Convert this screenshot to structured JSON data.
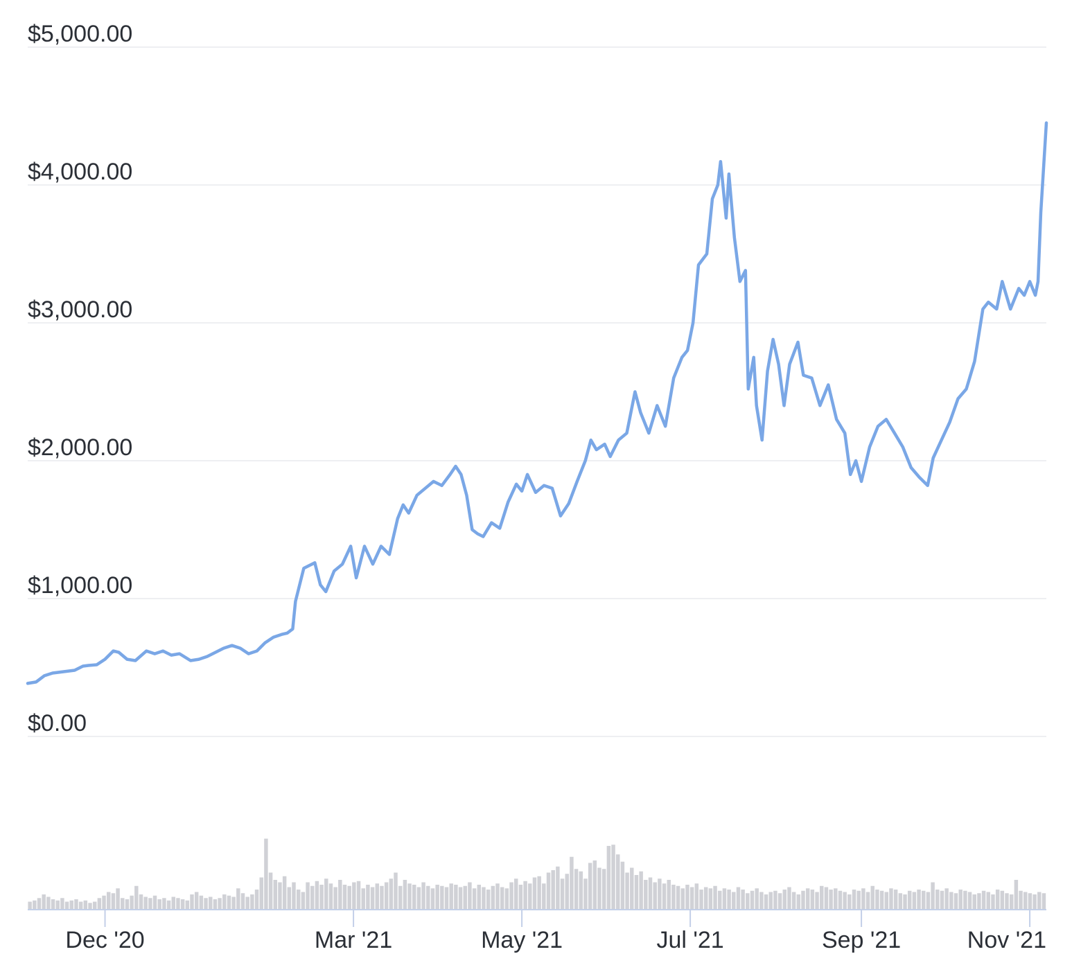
{
  "chart_data": {
    "type": "line",
    "series": [
      {
        "kind": "price_line",
        "color": "#7aa7e6"
      },
      {
        "kind": "volume_bars",
        "color": "#d0d1d6",
        "scale": "relative"
      }
    ],
    "y_ticks": [
      "$5,000.00",
      "$4,000.00",
      "$3,000.00",
      "$2,000.00",
      "$1,000.00",
      "$0.00"
    ],
    "y_tick_values": [
      5000,
      4000,
      3000,
      2000,
      1000,
      0
    ],
    "ylim": [
      0,
      5000
    ],
    "x_ticks": [
      "Dec '20",
      "Mar '21",
      "May '21",
      "Jul '21",
      "Sep '21",
      "Nov '21"
    ],
    "x_tick_dates": [
      "2020-12-01",
      "2021-03-01",
      "2021-05-01",
      "2021-07-01",
      "2021-09-01",
      "2021-11-01"
    ],
    "xlim": [
      "2020-11-03",
      "2021-11-07"
    ],
    "grid": true,
    "price_points": [
      [
        "2020-11-03",
        385
      ],
      [
        "2020-11-06",
        395
      ],
      [
        "2020-11-09",
        440
      ],
      [
        "2020-11-12",
        460
      ],
      [
        "2020-11-16",
        470
      ],
      [
        "2020-11-20",
        480
      ],
      [
        "2020-11-23",
        510
      ],
      [
        "2020-11-25",
        515
      ],
      [
        "2020-11-28",
        520
      ],
      [
        "2020-12-01",
        560
      ],
      [
        "2020-12-04",
        620
      ],
      [
        "2020-12-06",
        610
      ],
      [
        "2020-12-09",
        560
      ],
      [
        "2020-12-12",
        550
      ],
      [
        "2020-12-16",
        620
      ],
      [
        "2020-12-19",
        600
      ],
      [
        "2020-12-22",
        620
      ],
      [
        "2020-12-25",
        590
      ],
      [
        "2020-12-28",
        600
      ],
      [
        "2021-01-01",
        550
      ],
      [
        "2021-01-04",
        560
      ],
      [
        "2021-01-07",
        580
      ],
      [
        "2021-01-10",
        610
      ],
      [
        "2021-01-13",
        640
      ],
      [
        "2021-01-16",
        660
      ],
      [
        "2021-01-19",
        640
      ],
      [
        "2021-01-22",
        600
      ],
      [
        "2021-01-25",
        620
      ],
      [
        "2021-01-28",
        680
      ],
      [
        "2021-01-31",
        720
      ],
      [
        "2021-02-03",
        740
      ],
      [
        "2021-02-05",
        750
      ],
      [
        "2021-02-07",
        780
      ],
      [
        "2021-02-08",
        980
      ],
      [
        "2021-02-11",
        1220
      ],
      [
        "2021-02-13",
        1240
      ],
      [
        "2021-02-15",
        1260
      ],
      [
        "2021-02-17",
        1100
      ],
      [
        "2021-02-19",
        1050
      ],
      [
        "2021-02-22",
        1200
      ],
      [
        "2021-02-25",
        1250
      ],
      [
        "2021-02-28",
        1380
      ],
      [
        "2021-03-02",
        1150
      ],
      [
        "2021-03-05",
        1380
      ],
      [
        "2021-03-08",
        1250
      ],
      [
        "2021-03-11",
        1380
      ],
      [
        "2021-03-14",
        1320
      ],
      [
        "2021-03-17",
        1580
      ],
      [
        "2021-03-19",
        1680
      ],
      [
        "2021-03-21",
        1620
      ],
      [
        "2021-03-24",
        1750
      ],
      [
        "2021-03-27",
        1800
      ],
      [
        "2021-03-30",
        1850
      ],
      [
        "2021-04-02",
        1820
      ],
      [
        "2021-04-05",
        1900
      ],
      [
        "2021-04-07",
        1960
      ],
      [
        "2021-04-09",
        1900
      ],
      [
        "2021-04-11",
        1750
      ],
      [
        "2021-04-13",
        1500
      ],
      [
        "2021-04-15",
        1470
      ],
      [
        "2021-04-17",
        1450
      ],
      [
        "2021-04-20",
        1550
      ],
      [
        "2021-04-23",
        1510
      ],
      [
        "2021-04-26",
        1700
      ],
      [
        "2021-04-29",
        1830
      ],
      [
        "2021-05-01",
        1780
      ],
      [
        "2021-05-03",
        1900
      ],
      [
        "2021-05-06",
        1770
      ],
      [
        "2021-05-09",
        1820
      ],
      [
        "2021-05-12",
        1800
      ],
      [
        "2021-05-15",
        1600
      ],
      [
        "2021-05-18",
        1690
      ],
      [
        "2021-05-21",
        1850
      ],
      [
        "2021-05-24",
        2000
      ],
      [
        "2021-05-26",
        2150
      ],
      [
        "2021-05-28",
        2080
      ],
      [
        "2021-05-31",
        2120
      ],
      [
        "2021-06-02",
        2030
      ],
      [
        "2021-06-05",
        2150
      ],
      [
        "2021-06-08",
        2200
      ],
      [
        "2021-06-11",
        2500
      ],
      [
        "2021-06-13",
        2350
      ],
      [
        "2021-06-16",
        2200
      ],
      [
        "2021-06-19",
        2400
      ],
      [
        "2021-06-22",
        2250
      ],
      [
        "2021-06-25",
        2600
      ],
      [
        "2021-06-28",
        2750
      ],
      [
        "2021-06-30",
        2800
      ],
      [
        "2021-07-02",
        3000
      ],
      [
        "2021-07-04",
        3420
      ],
      [
        "2021-07-07",
        3500
      ],
      [
        "2021-07-09",
        3900
      ],
      [
        "2021-07-11",
        4000
      ],
      [
        "2021-07-12",
        4170
      ],
      [
        "2021-07-14",
        3760
      ],
      [
        "2021-07-15",
        4080
      ],
      [
        "2021-07-17",
        3620
      ],
      [
        "2021-07-19",
        3300
      ],
      [
        "2021-07-21",
        3380
      ],
      [
        "2021-07-22",
        2520
      ],
      [
        "2021-07-24",
        2750
      ],
      [
        "2021-07-25",
        2400
      ],
      [
        "2021-07-27",
        2150
      ],
      [
        "2021-07-29",
        2650
      ],
      [
        "2021-07-31",
        2880
      ],
      [
        "2021-08-02",
        2700
      ],
      [
        "2021-08-04",
        2400
      ],
      [
        "2021-08-06",
        2700
      ],
      [
        "2021-08-09",
        2860
      ],
      [
        "2021-08-11",
        2620
      ],
      [
        "2021-08-14",
        2600
      ],
      [
        "2021-08-17",
        2400
      ],
      [
        "2021-08-20",
        2550
      ],
      [
        "2021-08-23",
        2300
      ],
      [
        "2021-08-26",
        2200
      ],
      [
        "2021-08-28",
        1900
      ],
      [
        "2021-08-30",
        2000
      ],
      [
        "2021-09-01",
        1850
      ],
      [
        "2021-09-04",
        2100
      ],
      [
        "2021-09-07",
        2250
      ],
      [
        "2021-09-10",
        2300
      ],
      [
        "2021-09-13",
        2200
      ],
      [
        "2021-09-16",
        2100
      ],
      [
        "2021-09-19",
        1950
      ],
      [
        "2021-09-22",
        1880
      ],
      [
        "2021-09-25",
        1820
      ],
      [
        "2021-09-27",
        2020
      ],
      [
        "2021-09-30",
        2150
      ],
      [
        "2021-10-03",
        2280
      ],
      [
        "2021-10-06",
        2450
      ],
      [
        "2021-10-09",
        2520
      ],
      [
        "2021-10-12",
        2720
      ],
      [
        "2021-10-15",
        3100
      ],
      [
        "2021-10-17",
        3150
      ],
      [
        "2021-10-20",
        3100
      ],
      [
        "2021-10-22",
        3300
      ],
      [
        "2021-10-25",
        3100
      ],
      [
        "2021-10-28",
        3250
      ],
      [
        "2021-10-30",
        3200
      ],
      [
        "2021-11-01",
        3300
      ],
      [
        "2021-11-03",
        3200
      ],
      [
        "2021-11-04",
        3300
      ],
      [
        "2021-11-05",
        3800
      ],
      [
        "2021-11-07",
        4450
      ]
    ],
    "volume_bars_relative": [
      0.06,
      0.07,
      0.09,
      0.12,
      0.1,
      0.08,
      0.07,
      0.09,
      0.06,
      0.07,
      0.08,
      0.06,
      0.07,
      0.05,
      0.06,
      0.09,
      0.11,
      0.14,
      0.13,
      0.17,
      0.09,
      0.08,
      0.11,
      0.19,
      0.12,
      0.1,
      0.09,
      0.11,
      0.08,
      0.09,
      0.07,
      0.1,
      0.09,
      0.08,
      0.07,
      0.12,
      0.14,
      0.11,
      0.09,
      0.1,
      0.08,
      0.09,
      0.12,
      0.11,
      0.1,
      0.17,
      0.13,
      0.1,
      0.12,
      0.16,
      0.26,
      0.58,
      0.3,
      0.24,
      0.22,
      0.27,
      0.18,
      0.22,
      0.16,
      0.14,
      0.22,
      0.19,
      0.23,
      0.2,
      0.25,
      0.21,
      0.18,
      0.24,
      0.2,
      0.19,
      0.22,
      0.23,
      0.17,
      0.2,
      0.18,
      0.21,
      0.19,
      0.22,
      0.25,
      0.3,
      0.19,
      0.24,
      0.21,
      0.2,
      0.18,
      0.22,
      0.19,
      0.17,
      0.2,
      0.19,
      0.18,
      0.21,
      0.2,
      0.18,
      0.19,
      0.22,
      0.17,
      0.2,
      0.18,
      0.16,
      0.19,
      0.21,
      0.18,
      0.17,
      0.22,
      0.25,
      0.2,
      0.23,
      0.21,
      0.26,
      0.27,
      0.21,
      0.3,
      0.32,
      0.35,
      0.25,
      0.29,
      0.43,
      0.33,
      0.31,
      0.25,
      0.38,
      0.4,
      0.34,
      0.33,
      0.52,
      0.53,
      0.45,
      0.39,
      0.3,
      0.34,
      0.28,
      0.31,
      0.24,
      0.26,
      0.22,
      0.25,
      0.21,
      0.24,
      0.2,
      0.19,
      0.17,
      0.2,
      0.18,
      0.21,
      0.16,
      0.18,
      0.17,
      0.19,
      0.15,
      0.17,
      0.16,
      0.14,
      0.18,
      0.16,
      0.13,
      0.15,
      0.17,
      0.14,
      0.12,
      0.14,
      0.15,
      0.13,
      0.16,
      0.18,
      0.14,
      0.12,
      0.15,
      0.17,
      0.16,
      0.14,
      0.19,
      0.18,
      0.16,
      0.17,
      0.15,
      0.14,
      0.12,
      0.16,
      0.15,
      0.17,
      0.14,
      0.19,
      0.16,
      0.15,
      0.14,
      0.17,
      0.16,
      0.13,
      0.12,
      0.15,
      0.14,
      0.16,
      0.15,
      0.14,
      0.22,
      0.16,
      0.15,
      0.17,
      0.14,
      0.13,
      0.16,
      0.15,
      0.14,
      0.12,
      0.13,
      0.15,
      0.14,
      0.12,
      0.16,
      0.15,
      0.13,
      0.12,
      0.24,
      0.15,
      0.14,
      0.13,
      0.12,
      0.14,
      0.13
    ]
  }
}
